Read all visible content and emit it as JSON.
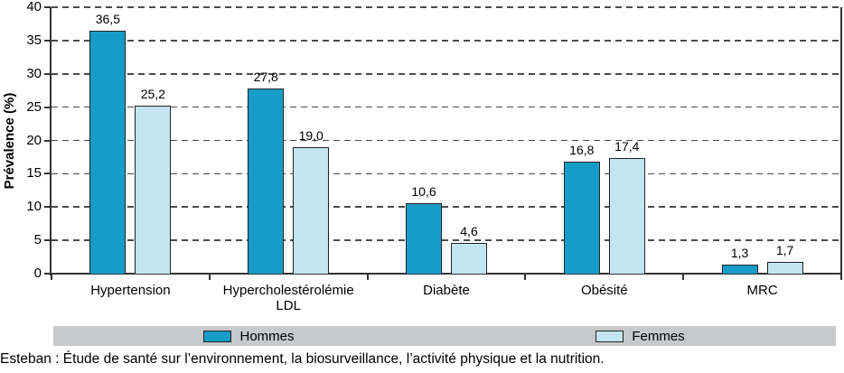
{
  "chart_data": {
    "type": "bar",
    "title": "",
    "ylabel": "Prévalence (%)",
    "xlabel": "",
    "ylim": [
      0,
      40
    ],
    "ytick_step": 5,
    "ytick_labels": [
      "0",
      "5",
      "10",
      "15",
      "20",
      "25",
      "30",
      "35",
      "40"
    ],
    "grid": "dashed-horizontal",
    "legend_position": "bottom",
    "categories": [
      "Hypertension",
      "Hypercholestérolémie LDL",
      "Diabète",
      "Obésité",
      "MRC"
    ],
    "series": [
      {
        "name": "Hommes",
        "color": "#169dc7",
        "values": [
          36.5,
          27.8,
          10.6,
          16.8,
          1.3
        ],
        "labels": [
          "36,5",
          "27,8",
          "10,6",
          "16,8",
          "1,3"
        ]
      },
      {
        "name": "Femmes",
        "color": "#c3e5f2",
        "values": [
          25.2,
          19.0,
          4.6,
          17.4,
          1.7
        ],
        "labels": [
          "25,2",
          "19,0",
          "4,6",
          "17,4",
          "1,7"
        ]
      }
    ]
  },
  "footer": {
    "source_text": "Esteban : Étude de santé sur l’environnement, la biosurveillance, l’activité physique et la nutrition."
  },
  "colors": {
    "hommes_bar": "#169dc7",
    "femmes_bar": "#c3e5f2",
    "bar_border": "#222222",
    "axis": "#333333",
    "gridline": "#4b4b4b",
    "legend_bg": "#c7c9cb",
    "text": "#000000"
  }
}
